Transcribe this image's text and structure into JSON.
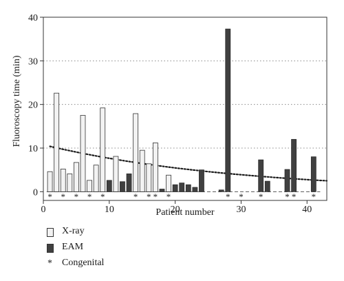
{
  "chart_data": {
    "type": "bar",
    "xlabel": "Patient number",
    "ylabel": "Fluoroscopy time (min)",
    "xlim": [
      0,
      43
    ],
    "ylim": [
      -2,
      40
    ],
    "xticks": [
      0,
      10,
      20,
      30,
      40
    ],
    "yticks": [
      0,
      10,
      20,
      30,
      40
    ],
    "grid": "horizontal dotted at y ticks",
    "series": [
      {
        "name": "X-ray",
        "color": "#f2f2f2",
        "points": [
          {
            "x": 1,
            "y": 4.6
          },
          {
            "x": 2,
            "y": 22.6
          },
          {
            "x": 3,
            "y": 5.2
          },
          {
            "x": 4,
            "y": 4.1
          },
          {
            "x": 5,
            "y": 6.7
          },
          {
            "x": 6,
            "y": 17.5
          },
          {
            "x": 7,
            "y": 2.6
          },
          {
            "x": 8,
            "y": 6.1
          },
          {
            "x": 9,
            "y": 19.2
          },
          {
            "x": 11,
            "y": 8.1
          },
          {
            "x": 14,
            "y": 17.9
          },
          {
            "x": 15,
            "y": 9.5
          },
          {
            "x": 16,
            "y": 6.4
          },
          {
            "x": 17,
            "y": 11.2
          },
          {
            "x": 19,
            "y": 3.8
          }
        ]
      },
      {
        "name": "EAM",
        "color": "#404040",
        "points": [
          {
            "x": 10,
            "y": 2.6
          },
          {
            "x": 12,
            "y": 2.3
          },
          {
            "x": 13,
            "y": 4.1
          },
          {
            "x": 18,
            "y": 0.6
          },
          {
            "x": 20,
            "y": 1.6
          },
          {
            "x": 21,
            "y": 2.0
          },
          {
            "x": 22,
            "y": 1.6
          },
          {
            "x": 23,
            "y": 1.0
          },
          {
            "x": 24,
            "y": 5.0
          },
          {
            "x": 27,
            "y": 0.4
          },
          {
            "x": 28,
            "y": 37.3
          },
          {
            "x": 33,
            "y": 7.3
          },
          {
            "x": 34,
            "y": 2.4
          },
          {
            "x": 37,
            "y": 5.1
          },
          {
            "x": 38,
            "y": 12.0
          },
          {
            "x": 41,
            "y": 8.0
          }
        ]
      }
    ],
    "congenital_patients": [
      1,
      3,
      5,
      7,
      9,
      14,
      16,
      17,
      19,
      28,
      30,
      33,
      37,
      38,
      41
    ],
    "trend_line": {
      "style": "dotted",
      "type": "exponential",
      "points": [
        [
          1,
          10.4
        ],
        [
          43,
          2.5
        ]
      ]
    },
    "zero_line": {
      "style": "dashed",
      "from_x": 24,
      "to_x": 42
    }
  },
  "legend": {
    "xray_label": "X-ray",
    "eam_label": "EAM",
    "congenital_label": "Congenital",
    "congenital_symbol": "*"
  }
}
